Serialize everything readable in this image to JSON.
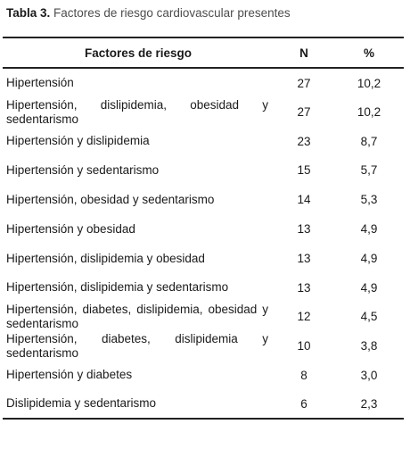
{
  "caption": {
    "label": "Tabla 3.",
    "text": "Factores de riesgo cardiovascular presentes"
  },
  "table": {
    "headers": [
      "Factores de riesgo",
      "N",
      "%"
    ],
    "rows": [
      {
        "factor": "Hipertensión",
        "n": "27",
        "pct": "10,2"
      },
      {
        "factor": "Hipertensión, dislipidemia, obesidad y sedentarismo",
        "n": "27",
        "pct": "10,2"
      },
      {
        "factor": "Hipertensión y dislipidemia",
        "n": "23",
        "pct": "8,7"
      },
      {
        "factor": "Hipertensión y sedentarismo",
        "n": "15",
        "pct": "5,7"
      },
      {
        "factor": "Hipertensión, obesidad y sedentarismo",
        "n": "14",
        "pct": "5,3"
      },
      {
        "factor": "Hipertensión y obesidad",
        "n": "13",
        "pct": "4,9"
      },
      {
        "factor": "Hipertensión, dislipidemia y obesidad",
        "n": "13",
        "pct": "4,9"
      },
      {
        "factor": "Hipertensión, dislipidemia y sedentarismo",
        "n": "13",
        "pct": "4,9"
      },
      {
        "factor": "Hipertensión, diabetes, dislipidemia, obesidad y sedentarismo",
        "n": "12",
        "pct": "4,5"
      },
      {
        "factor": "Hipertensión, diabetes, dislipidemia y sedentarismo",
        "n": "10",
        "pct": "3,8"
      },
      {
        "factor": "Hipertensión y diabetes",
        "n": "8",
        "pct": "3,0"
      },
      {
        "factor": "Dislipidemia y sedentarismo",
        "n": "6",
        "pct": "2,3"
      }
    ]
  }
}
